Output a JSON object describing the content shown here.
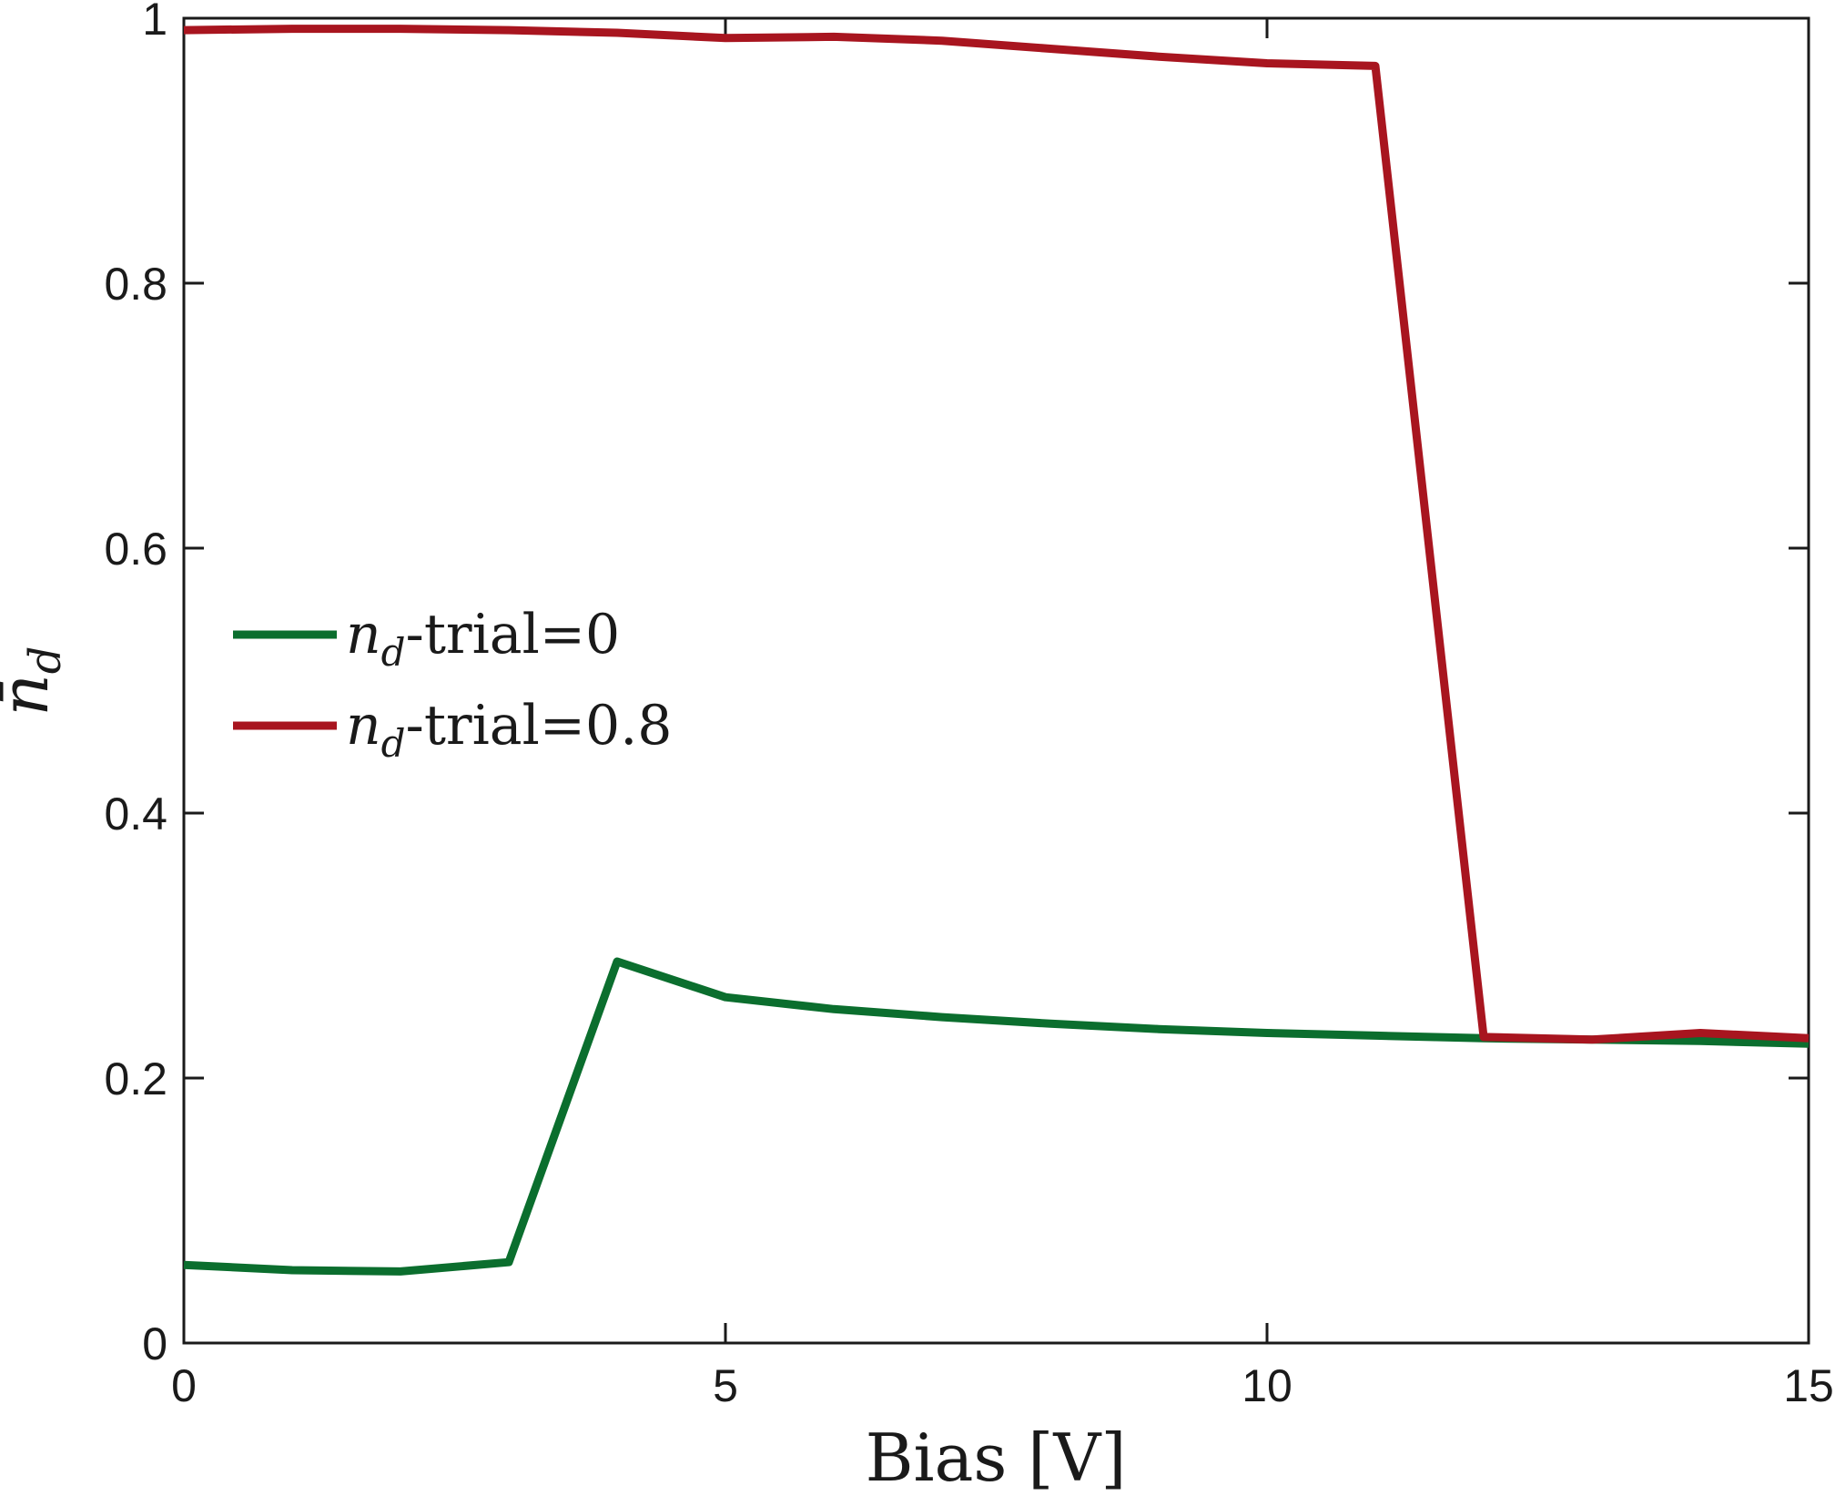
{
  "chart_data": {
    "type": "line",
    "title": "",
    "xlabel": "Bias [V]",
    "ylabel": "n̄",
    "ylabel_subscript": "d",
    "xlim": [
      0,
      15
    ],
    "ylim": [
      0,
      1
    ],
    "x_ticks": [
      0,
      5,
      10,
      15
    ],
    "y_ticks": [
      0,
      0.2,
      0.4,
      0.6,
      0.8,
      1
    ],
    "x_tick_labels": [
      "0",
      "5",
      "10",
      "15"
    ],
    "y_tick_labels": [
      "0",
      "0.2",
      "0.4",
      "0.6",
      "0.8",
      "1"
    ],
    "grid": false,
    "legend_position": "center-left",
    "x": [
      0,
      1,
      2,
      3,
      4,
      5,
      6,
      7,
      8,
      9,
      10,
      11,
      12,
      13,
      14,
      15
    ],
    "series": [
      {
        "name": "n_d-trial=0",
        "legend": {
          "var": "n",
          "sub": "d",
          "text": "-trial=0"
        },
        "color": "#0b6e2e",
        "values": [
          0.059,
          0.055,
          0.054,
          0.061,
          0.288,
          0.261,
          0.252,
          0.246,
          0.241,
          0.237,
          0.234,
          0.232,
          0.23,
          0.229,
          0.228,
          0.226
        ]
      },
      {
        "name": "n_d-trial=0.8",
        "legend": {
          "var": "n",
          "sub": "d",
          "text": "-trial=0.8"
        },
        "color": "#a8151f",
        "values": [
          0.991,
          0.992,
          0.992,
          0.991,
          0.989,
          0.985,
          0.986,
          0.983,
          0.977,
          0.971,
          0.966,
          0.964,
          0.231,
          0.229,
          0.234,
          0.23
        ]
      }
    ]
  }
}
